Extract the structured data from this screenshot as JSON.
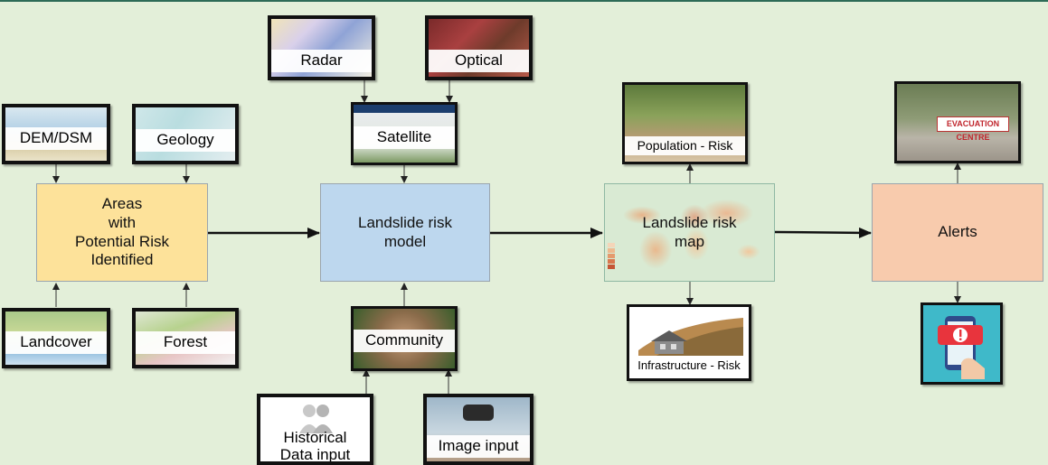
{
  "nodes": {
    "areas": "Areas\nwith\nPotential Risk\nIdentified",
    "model": "Landslide risk\nmodel",
    "map": "Landslide risk\nmap",
    "alerts": "Alerts"
  },
  "inputs": {
    "dem": "DEM/DSM",
    "geology": "Geology",
    "landcover": "Landcover",
    "forest": "Forest",
    "radar": "Radar",
    "optical": "Optical",
    "satellite": "Satellite",
    "community": "Community",
    "historical": "Historical\nData input",
    "image": "Image input",
    "population": "Population - Risk",
    "infrastructure": "Infrastructure - Risk",
    "evac_sign": "EVACUATION CENTRE"
  },
  "colors": {
    "areas": "#fde29a",
    "model": "#bdd7ee",
    "map": "#d9ead3",
    "alerts": "#f8cbad",
    "background": "#e3efd9"
  },
  "icons": {
    "phone_alert": "phone-alert-icon",
    "people": "people-icon",
    "house": "house-icon"
  }
}
